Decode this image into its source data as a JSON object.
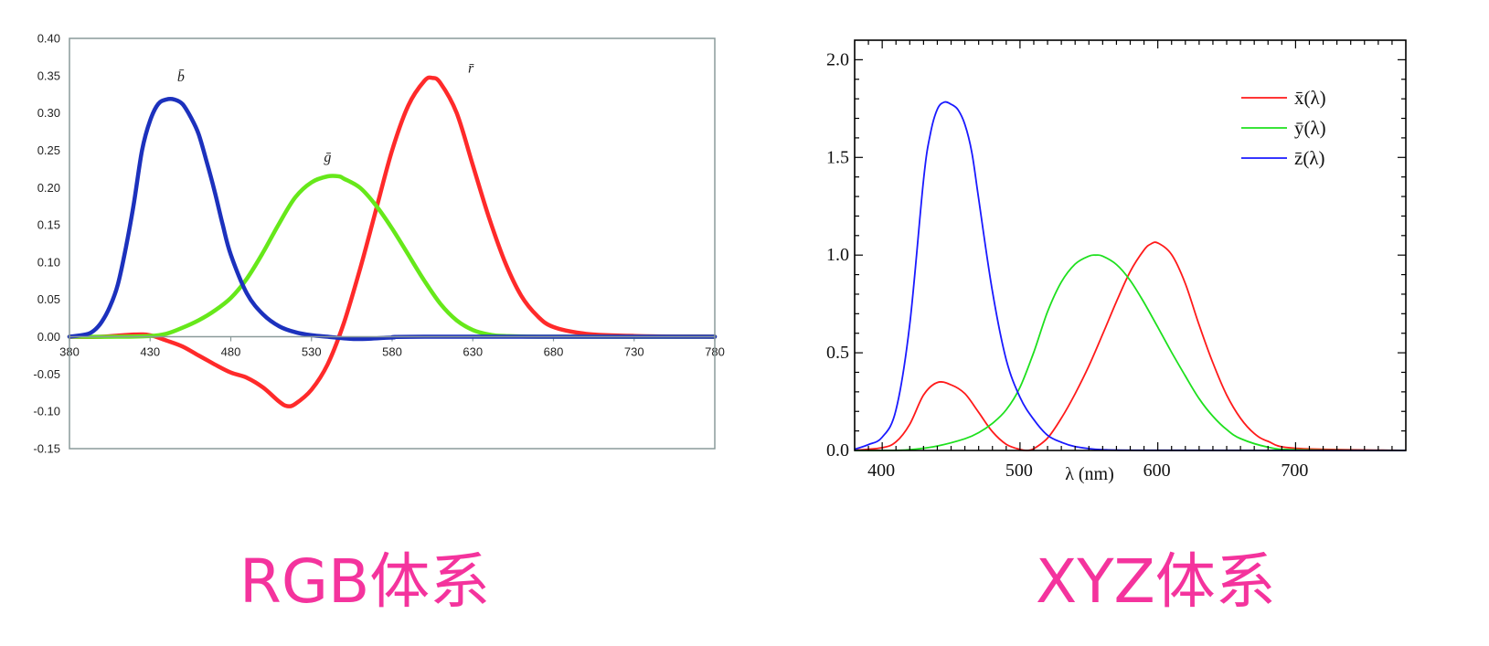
{
  "captions": {
    "rgb": "RGB体系",
    "xyz": "XYZ体系"
  },
  "chart_data": [
    {
      "type": "line",
      "title": "",
      "xlabel": "",
      "ylabel": "",
      "xlim": [
        380,
        780
      ],
      "ylim": [
        -0.15,
        0.4
      ],
      "x_ticks": [
        "380",
        "430",
        "480",
        "530",
        "580",
        "630",
        "680",
        "730",
        "780"
      ],
      "y_ticks": [
        "0.40",
        "0.35",
        "0.30",
        "0.25",
        "0.20",
        "0.15",
        "0.10",
        "0.05",
        "0.00",
        "-0.05",
        "-0.10",
        "-0.15"
      ],
      "grid": false,
      "series": [
        {
          "name": "r̄",
          "color": "#ff2a2a",
          "x": [
            380,
            400,
            420,
            430,
            440,
            450,
            460,
            470,
            480,
            490,
            500,
            510,
            515,
            520,
            530,
            540,
            550,
            560,
            570,
            580,
            590,
            600,
            605,
            610,
            620,
            630,
            640,
            650,
            660,
            670,
            680,
            700,
            730,
            780
          ],
          "y": [
            0.0,
            0.0,
            0.003,
            0.002,
            -0.005,
            -0.013,
            -0.025,
            -0.037,
            -0.048,
            -0.055,
            -0.068,
            -0.087,
            -0.093,
            -0.09,
            -0.071,
            -0.037,
            0.018,
            0.09,
            0.17,
            0.25,
            0.31,
            0.343,
            0.347,
            0.34,
            0.3,
            0.23,
            0.16,
            0.1,
            0.055,
            0.028,
            0.013,
            0.004,
            0.001,
            0.0
          ]
        },
        {
          "name": "ḡ",
          "color": "#66e81a",
          "x": [
            380,
            410,
            430,
            440,
            450,
            460,
            470,
            480,
            490,
            500,
            510,
            520,
            530,
            540,
            547,
            550,
            560,
            570,
            580,
            590,
            600,
            610,
            620,
            630,
            640,
            650,
            680,
            780
          ],
          "y": [
            0.0,
            0.0,
            0.001,
            0.004,
            0.012,
            0.022,
            0.035,
            0.052,
            0.078,
            0.113,
            0.152,
            0.187,
            0.207,
            0.215,
            0.215,
            0.212,
            0.2,
            0.176,
            0.145,
            0.11,
            0.075,
            0.044,
            0.022,
            0.009,
            0.003,
            0.001,
            0.0,
            0.0
          ]
        },
        {
          "name": "b̄",
          "color": "#1c31bd",
          "x": [
            380,
            390,
            395,
            400,
            405,
            410,
            415,
            420,
            425,
            430,
            435,
            440,
            445,
            450,
            455,
            460,
            465,
            470,
            475,
            480,
            490,
            500,
            510,
            520,
            530,
            540,
            550,
            560,
            580,
            600,
            780
          ],
          "y": [
            0.0,
            0.003,
            0.008,
            0.02,
            0.04,
            0.07,
            0.12,
            0.18,
            0.25,
            0.29,
            0.312,
            0.318,
            0.318,
            0.312,
            0.295,
            0.272,
            0.235,
            0.195,
            0.15,
            0.11,
            0.058,
            0.03,
            0.014,
            0.006,
            0.002,
            0.0,
            -0.002,
            -0.003,
            -0.001,
            0.0,
            0.0
          ]
        }
      ]
    },
    {
      "type": "line",
      "title": "",
      "xlabel": "λ (nm)",
      "ylabel": "",
      "xlim": [
        380,
        780
      ],
      "ylim": [
        0,
        2.1
      ],
      "x_ticks": [
        "400",
        "500",
        "600",
        "700"
      ],
      "y_ticks": [
        "0.0",
        "0.5",
        "1.0",
        "1.5",
        "2.0"
      ],
      "legend": "top-right",
      "grid": false,
      "series": [
        {
          "name": "x̄(λ)",
          "color": "#ff1a1a",
          "x": [
            380,
            400,
            410,
            420,
            430,
            440,
            450,
            460,
            470,
            480,
            490,
            500,
            505,
            510,
            520,
            530,
            540,
            550,
            560,
            570,
            580,
            590,
            595,
            600,
            610,
            620,
            630,
            640,
            650,
            660,
            670,
            680,
            700,
            780
          ],
          "y": [
            0.001,
            0.014,
            0.044,
            0.134,
            0.284,
            0.348,
            0.336,
            0.291,
            0.195,
            0.096,
            0.032,
            0.005,
            0.0,
            0.009,
            0.063,
            0.165,
            0.29,
            0.433,
            0.595,
            0.762,
            0.916,
            1.026,
            1.057,
            1.062,
            1.003,
            0.854,
            0.642,
            0.448,
            0.284,
            0.165,
            0.087,
            0.047,
            0.011,
            0.0
          ]
        },
        {
          "name": "ȳ(λ)",
          "color": "#1ee01e",
          "x": [
            380,
            400,
            420,
            440,
            460,
            470,
            480,
            490,
            500,
            510,
            520,
            530,
            540,
            550,
            555,
            560,
            570,
            580,
            590,
            600,
            610,
            620,
            630,
            640,
            650,
            660,
            680,
            700,
            780
          ],
          "y": [
            0.0,
            0.0,
            0.004,
            0.023,
            0.06,
            0.091,
            0.139,
            0.208,
            0.323,
            0.503,
            0.71,
            0.862,
            0.954,
            0.995,
            1.0,
            0.995,
            0.952,
            0.87,
            0.757,
            0.631,
            0.503,
            0.381,
            0.265,
            0.175,
            0.107,
            0.061,
            0.017,
            0.004,
            0.0
          ]
        },
        {
          "name": "z̄(λ)",
          "color": "#1a1aff",
          "x": [
            380,
            390,
            400,
            410,
            420,
            430,
            435,
            440,
            445,
            450,
            455,
            460,
            465,
            470,
            480,
            490,
            500,
            510,
            520,
            530,
            540,
            560,
            600,
            780
          ],
          "y": [
            0.006,
            0.03,
            0.068,
            0.207,
            0.646,
            1.386,
            1.622,
            1.747,
            1.783,
            1.772,
            1.744,
            1.669,
            1.528,
            1.288,
            0.813,
            0.465,
            0.272,
            0.158,
            0.078,
            0.042,
            0.02,
            0.004,
            0.001,
            0.0
          ]
        }
      ]
    }
  ]
}
